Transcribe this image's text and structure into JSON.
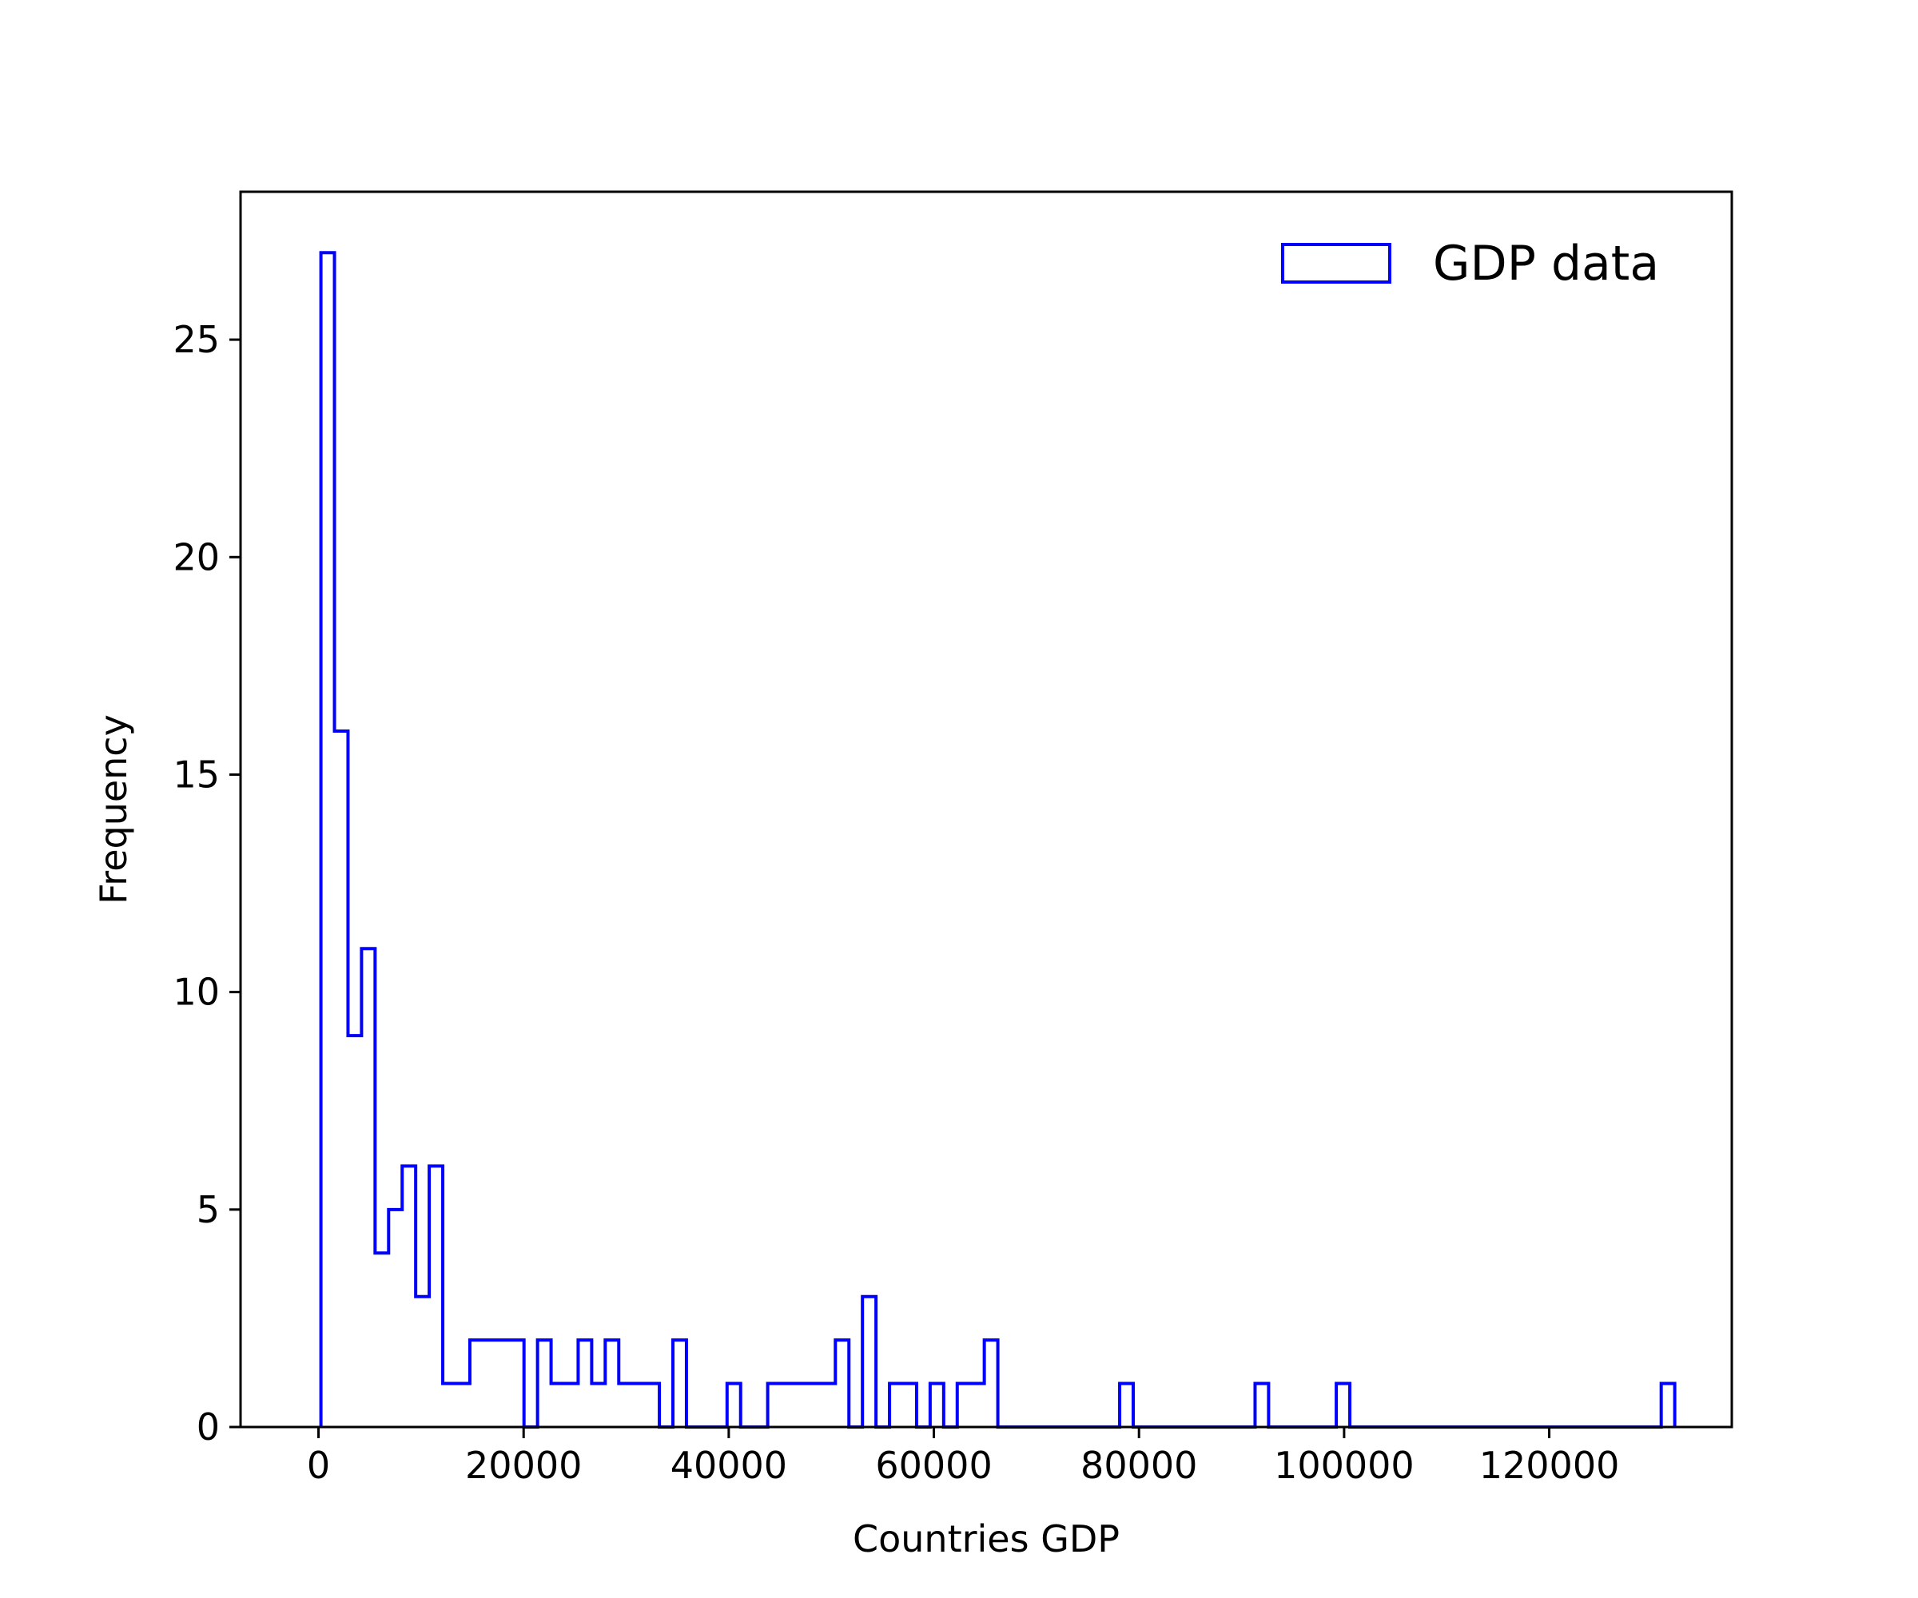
{
  "chart_data": {
    "type": "histogram",
    "xlabel": "Countries GDP",
    "ylabel": "Frequency",
    "xlim": [
      -7600,
      137800
    ],
    "ylim": [
      0,
      28.4
    ],
    "xticks": [
      0,
      20000,
      40000,
      60000,
      80000,
      100000,
      120000
    ],
    "xtick_labels": [
      "0",
      "20000",
      "40000",
      "60000",
      "80000",
      "100000",
      "120000"
    ],
    "yticks": [
      0,
      5,
      10,
      15,
      20,
      25
    ],
    "ytick_labels": [
      "0",
      "5",
      "10",
      "15",
      "20",
      "25"
    ],
    "legend": {
      "position": "upper right",
      "entries": [
        "GDP data"
      ]
    },
    "grid": false,
    "series": [
      {
        "name": "GDP data",
        "histtype": "step",
        "color": "#0000ff",
        "bin_start": 237,
        "bin_width": 1320,
        "counts": [
          27,
          16,
          9,
          11,
          4,
          5,
          6,
          3,
          6,
          1,
          1,
          2,
          2,
          2,
          2,
          0,
          2,
          1,
          1,
          2,
          1,
          2,
          1,
          1,
          1,
          0,
          2,
          0,
          0,
          0,
          1,
          0,
          0,
          1,
          1,
          1,
          1,
          1,
          2,
          0,
          3,
          0,
          1,
          1,
          0,
          1,
          0,
          1,
          1,
          2,
          0,
          0,
          0,
          0,
          0,
          0,
          0,
          0,
          0,
          1,
          0,
          0,
          0,
          0,
          0,
          0,
          0,
          0,
          0,
          1,
          0,
          0,
          0,
          0,
          0,
          1,
          0,
          0,
          0,
          0,
          0,
          0,
          0,
          0,
          0,
          0,
          0,
          0,
          0,
          0,
          0,
          0,
          0,
          0,
          0,
          0,
          0,
          0,
          0,
          1
        ]
      }
    ]
  }
}
